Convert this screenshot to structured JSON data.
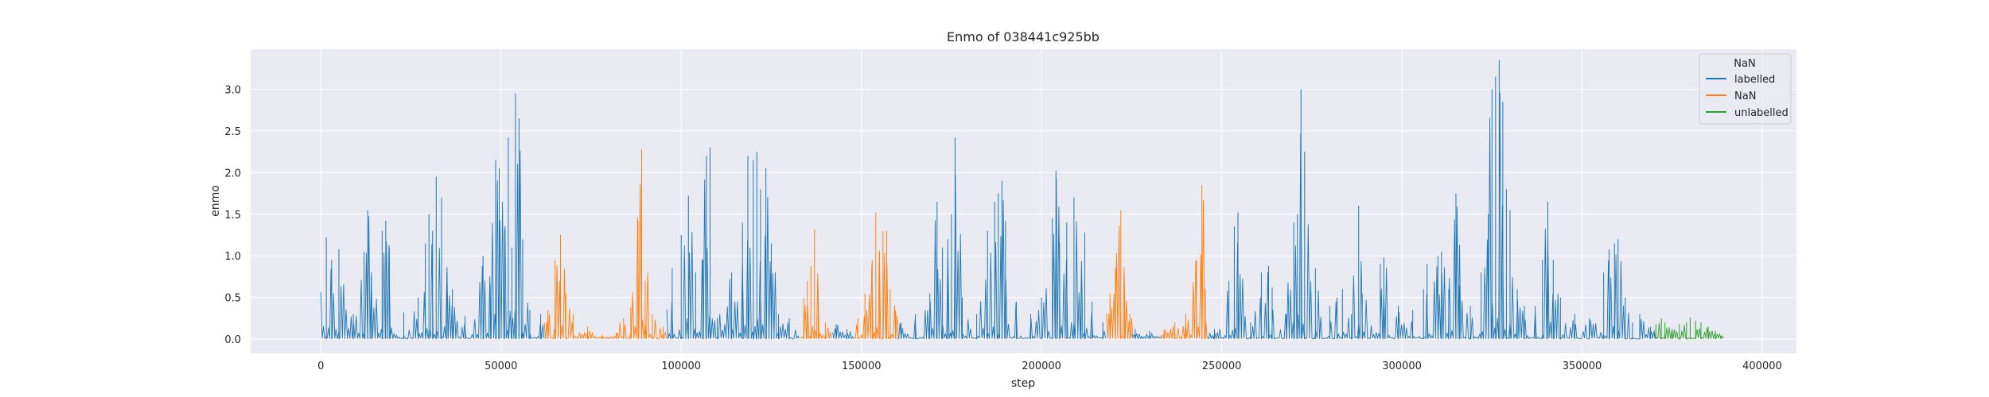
{
  "chart_data": {
    "type": "line",
    "title": "Enmo of 038441c925bb",
    "xlabel": "step",
    "ylabel": "enmo",
    "xlim": [
      -19500,
      409500
    ],
    "ylim": [
      -0.17,
      3.48
    ],
    "xticks": [
      0,
      50000,
      100000,
      150000,
      200000,
      250000,
      300000,
      350000,
      400000
    ],
    "xtick_labels": [
      "0",
      "50000",
      "100000",
      "150000",
      "200000",
      "250000",
      "300000",
      "350000",
      "400000"
    ],
    "yticks": [
      0.0,
      0.5,
      1.0,
      1.5,
      2.0,
      2.5,
      3.0
    ],
    "ytick_labels": [
      "0.0",
      "0.5",
      "1.0",
      "1.5",
      "2.0",
      "2.5",
      "3.0"
    ],
    "grid": true,
    "legend": {
      "placement": "top-right",
      "title": "NaN",
      "entries": [
        "labelled",
        "NaN",
        "unlabelled"
      ]
    },
    "colors": {
      "labelled": "#1f77b4",
      "NaN": "#ff7f0e",
      "unlabelled": "#2ca02c"
    },
    "series": [
      {
        "name": "labelled",
        "segments": [
          [
            0,
            62000
          ],
          [
            96000,
            133000
          ],
          [
            142000,
            148000
          ],
          [
            160000,
            218000
          ],
          [
            225000,
            233000
          ],
          [
            246000,
            370000
          ]
        ],
        "peaks": [
          [
            1500,
            1.22
          ],
          [
            3000,
            0.95
          ],
          [
            5000,
            1.08
          ],
          [
            9000,
            0.3
          ],
          [
            12000,
            1.05
          ],
          [
            13000,
            1.55
          ],
          [
            14000,
            0.8
          ],
          [
            17000,
            1.3
          ],
          [
            18000,
            1.42
          ],
          [
            19000,
            1.1
          ],
          [
            23000,
            0.32
          ],
          [
            27000,
            0.5
          ],
          [
            29000,
            1.15
          ],
          [
            30000,
            1.5
          ],
          [
            31000,
            1.3
          ],
          [
            32000,
            1.95
          ],
          [
            33500,
            1.7
          ],
          [
            35000,
            0.8
          ],
          [
            36500,
            0.6
          ],
          [
            40000,
            0.28
          ],
          [
            45000,
            1.0
          ],
          [
            47000,
            0.65
          ],
          [
            48500,
            2.15
          ],
          [
            49500,
            2.05
          ],
          [
            51000,
            1.32
          ],
          [
            52000,
            2.42
          ],
          [
            53000,
            1.1
          ],
          [
            54000,
            2.95
          ],
          [
            55000,
            2.65
          ],
          [
            56000,
            1.2
          ],
          [
            58000,
            0.35
          ],
          [
            61000,
            0.3
          ],
          [
            97500,
            0.85
          ],
          [
            100000,
            1.25
          ],
          [
            102000,
            1.72
          ],
          [
            104000,
            0.8
          ],
          [
            106000,
            0.95
          ],
          [
            107000,
            2.2
          ],
          [
            108000,
            2.3
          ],
          [
            110000,
            0.25
          ],
          [
            114000,
            0.8
          ],
          [
            117000,
            1.4
          ],
          [
            118500,
            2.2
          ],
          [
            120000,
            2.15
          ],
          [
            121000,
            2.25
          ],
          [
            122000,
            1.8
          ],
          [
            123500,
            2.05
          ],
          [
            125000,
            1.15
          ],
          [
            127000,
            0.3
          ],
          [
            130000,
            0.25
          ],
          [
            143000,
            0.18
          ],
          [
            146000,
            0.12
          ],
          [
            161000,
            0.2
          ],
          [
            165000,
            0.3
          ],
          [
            169000,
            0.55
          ],
          [
            171000,
            1.65
          ],
          [
            172500,
            1.1
          ],
          [
            174000,
            1.2
          ],
          [
            175000,
            1.5
          ],
          [
            176000,
            2.42
          ],
          [
            178000,
            0.5
          ],
          [
            182000,
            0.3
          ],
          [
            185000,
            1.3
          ],
          [
            187000,
            1.65
          ],
          [
            188000,
            1.75
          ],
          [
            189000,
            1.9
          ],
          [
            190000,
            1.42
          ],
          [
            193000,
            0.45
          ],
          [
            197000,
            0.3
          ],
          [
            200000,
            0.5
          ],
          [
            203000,
            1.45
          ],
          [
            204000,
            2.02
          ],
          [
            205000,
            1.15
          ],
          [
            207000,
            1.4
          ],
          [
            209000,
            1.7
          ],
          [
            211000,
            0.65
          ],
          [
            212000,
            1.28
          ],
          [
            214000,
            0.45
          ],
          [
            217000,
            0.2
          ],
          [
            226000,
            0.12
          ],
          [
            230000,
            0.1
          ],
          [
            248000,
            0.12
          ],
          [
            252000,
            0.7
          ],
          [
            253500,
            1.35
          ],
          [
            254500,
            1.52
          ],
          [
            258000,
            0.2
          ],
          [
            261000,
            0.8
          ],
          [
            263000,
            0.88
          ],
          [
            264000,
            0.62
          ],
          [
            268000,
            0.3
          ],
          [
            270000,
            1.4
          ],
          [
            271000,
            1.5
          ],
          [
            272000,
            3.0
          ],
          [
            273000,
            2.25
          ],
          [
            276000,
            0.85
          ],
          [
            280000,
            0.4
          ],
          [
            282000,
            0.5
          ],
          [
            283500,
            0.6
          ],
          [
            286000,
            0.3
          ],
          [
            288000,
            1.6
          ],
          [
            289000,
            0.55
          ],
          [
            294000,
            0.9
          ],
          [
            295000,
            0.98
          ],
          [
            299000,
            0.4
          ],
          [
            303000,
            0.35
          ],
          [
            306000,
            0.6
          ],
          [
            307000,
            0.9
          ],
          [
            310000,
            1.0
          ],
          [
            311000,
            1.05
          ],
          [
            313000,
            0.6
          ],
          [
            315000,
            1.75
          ],
          [
            316000,
            0.65
          ],
          [
            319000,
            0.4
          ],
          [
            322000,
            0.8
          ],
          [
            324000,
            1.5
          ],
          [
            325000,
            3.0
          ],
          [
            326000,
            3.15
          ],
          [
            327000,
            3.35
          ],
          [
            328000,
            2.85
          ],
          [
            329000,
            1.8
          ],
          [
            330000,
            1.55
          ],
          [
            332000,
            0.6
          ],
          [
            334000,
            0.4
          ],
          [
            337000,
            0.4
          ],
          [
            339000,
            0.95
          ],
          [
            340500,
            1.65
          ],
          [
            342000,
            0.95
          ],
          [
            344000,
            0.5
          ],
          [
            348000,
            0.3
          ],
          [
            352000,
            0.25
          ],
          [
            356000,
            0.8
          ],
          [
            357500,
            1.08
          ],
          [
            359000,
            1.15
          ],
          [
            360000,
            1.2
          ],
          [
            362000,
            0.5
          ],
          [
            364000,
            0.2
          ],
          [
            366000,
            0.3
          ],
          [
            369000,
            0.15
          ]
        ]
      },
      {
        "name": "NaN",
        "segments": [
          [
            62000,
            96000
          ],
          [
            133000,
            142000
          ],
          [
            148000,
            160000
          ],
          [
            218000,
            225000
          ],
          [
            233000,
            246000
          ]
        ],
        "peaks": [
          [
            63000,
            0.35
          ],
          [
            65000,
            0.95
          ],
          [
            66500,
            1.25
          ],
          [
            68000,
            0.55
          ],
          [
            70000,
            0.3
          ],
          [
            74000,
            0.15
          ],
          [
            78000,
            0.05
          ],
          [
            82000,
            0.08
          ],
          [
            84000,
            0.25
          ],
          [
            86000,
            0.38
          ],
          [
            88000,
            1.42
          ],
          [
            89000,
            2.28
          ],
          [
            90000,
            0.7
          ],
          [
            92000,
            0.3
          ],
          [
            95000,
            0.15
          ],
          [
            134000,
            0.5
          ],
          [
            135000,
            0.7
          ],
          [
            136000,
            0.88
          ],
          [
            137000,
            1.32
          ],
          [
            138000,
            0.6
          ],
          [
            140000,
            0.2
          ],
          [
            149000,
            0.25
          ],
          [
            151000,
            0.55
          ],
          [
            153000,
            0.95
          ],
          [
            154000,
            1.52
          ],
          [
            155000,
            1.05
          ],
          [
            156000,
            1.3
          ],
          [
            157000,
            1.3
          ],
          [
            158000,
            0.6
          ],
          [
            159500,
            0.35
          ],
          [
            219000,
            0.55
          ],
          [
            220500,
            0.85
          ],
          [
            222000,
            1.55
          ],
          [
            223000,
            0.6
          ],
          [
            224500,
            0.3
          ],
          [
            234000,
            0.12
          ],
          [
            237000,
            0.2
          ],
          [
            240000,
            0.3
          ],
          [
            243000,
            0.95
          ],
          [
            244500,
            1.85
          ],
          [
            245500,
            0.6
          ]
        ]
      },
      {
        "name": "unlabelled",
        "segments": [
          [
            370000,
            389000
          ]
        ],
        "peaks": [
          [
            370500,
            0.18
          ],
          [
            372000,
            0.25
          ],
          [
            373000,
            0.2
          ],
          [
            375000,
            0.12
          ],
          [
            377000,
            0.18
          ],
          [
            379000,
            0.2
          ],
          [
            380000,
            0.26
          ],
          [
            381500,
            0.22
          ],
          [
            383000,
            0.2
          ],
          [
            385000,
            0.15
          ],
          [
            387000,
            0.1
          ],
          [
            388500,
            0.04
          ]
        ]
      }
    ]
  }
}
